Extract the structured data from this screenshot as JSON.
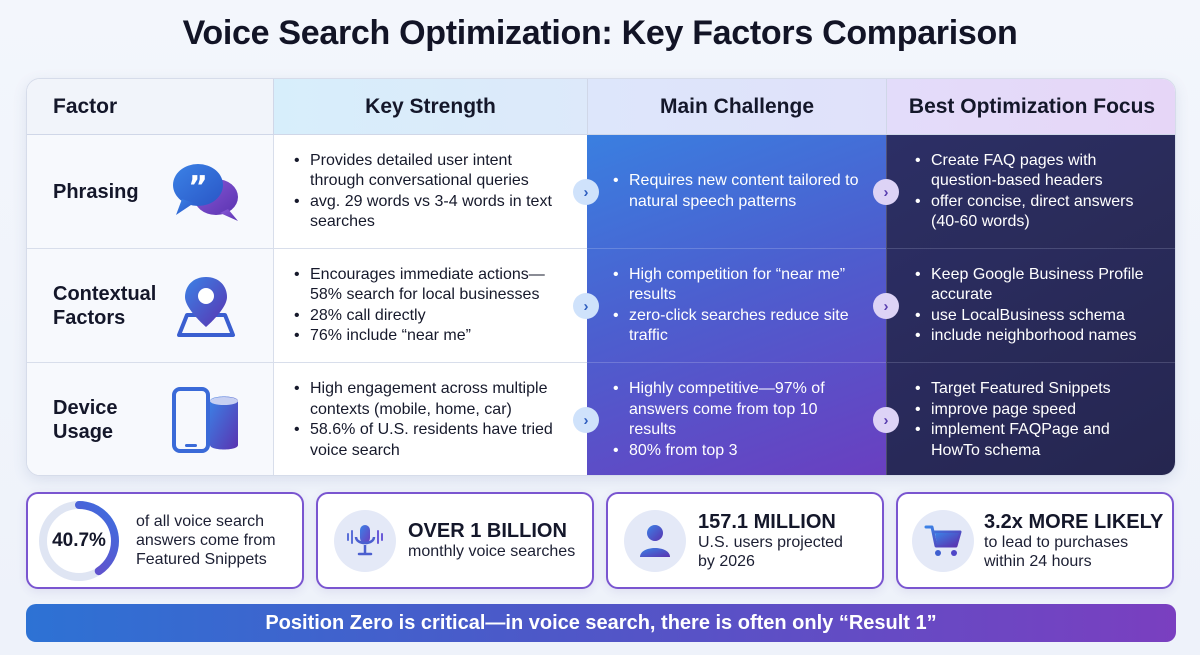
{
  "title": "Voice Search Optimization: Key Factors Comparison",
  "columns": {
    "factor": "Factor",
    "strength": "Key Strength",
    "challenge": "Main Challenge",
    "focus": "Best Optimization Focus"
  },
  "rows": [
    {
      "factor": "Phrasing",
      "icon": "speech-bubbles-icon",
      "strength": [
        "Provides detailed user intent through conversational queries",
        "avg. 29 words vs 3-4 words in text searches"
      ],
      "challenge": [
        "Requires new content tailored to natural speech patterns"
      ],
      "focus": [
        "Create FAQ pages with question-based headers",
        "offer concise, direct answers (40-60 words)"
      ]
    },
    {
      "factor": "Contextual\nFactors",
      "icon": "location-pin-map-icon",
      "strength": [
        "Encourages immediate actions—58% search for local businesses",
        "28% call directly",
        "76% include “near me”"
      ],
      "challenge": [
        "High competition for “near me” results",
        "zero-click searches reduce site traffic"
      ],
      "focus": [
        "Keep Google Business Profile accurate",
        "use LocalBusiness schema",
        "include neighborhood names"
      ]
    },
    {
      "factor": "Device\nUsage",
      "icon": "phone-smart-speaker-icon",
      "strength": [
        "High engagement across multiple contexts (mobile, home, car)",
        "58.6% of U.S. residents have tried voice search"
      ],
      "challenge": [
        "Highly competitive—97% of answers come from top 10 results",
        "80% from top 3"
      ],
      "focus": [
        "Target Featured Snippets",
        "improve page speed",
        "implement FAQPage and HowTo schema"
      ]
    }
  ],
  "stats": [
    {
      "value": "40.7%",
      "percent": 40.7,
      "text": "of all voice search answers come from Featured Snippets"
    },
    {
      "headline": "OVER 1 BILLION",
      "text": "monthly voice searches",
      "icon": "microphone-icon"
    },
    {
      "headline": "157.1 MILLION",
      "text": "U.S. users projected by 2026",
      "icon": "user-icon"
    },
    {
      "headline": "3.2x MORE LIKELY",
      "text": "to lead to purchases within 24 hours",
      "icon": "shopping-cart-icon"
    }
  ],
  "banner": "Position Zero is critical—in voice search, there is often only “Result 1”",
  "colors": {
    "accent_blue": "#2d72d4",
    "accent_purple": "#7a3fc0",
    "dark_navy": "#262a55"
  }
}
